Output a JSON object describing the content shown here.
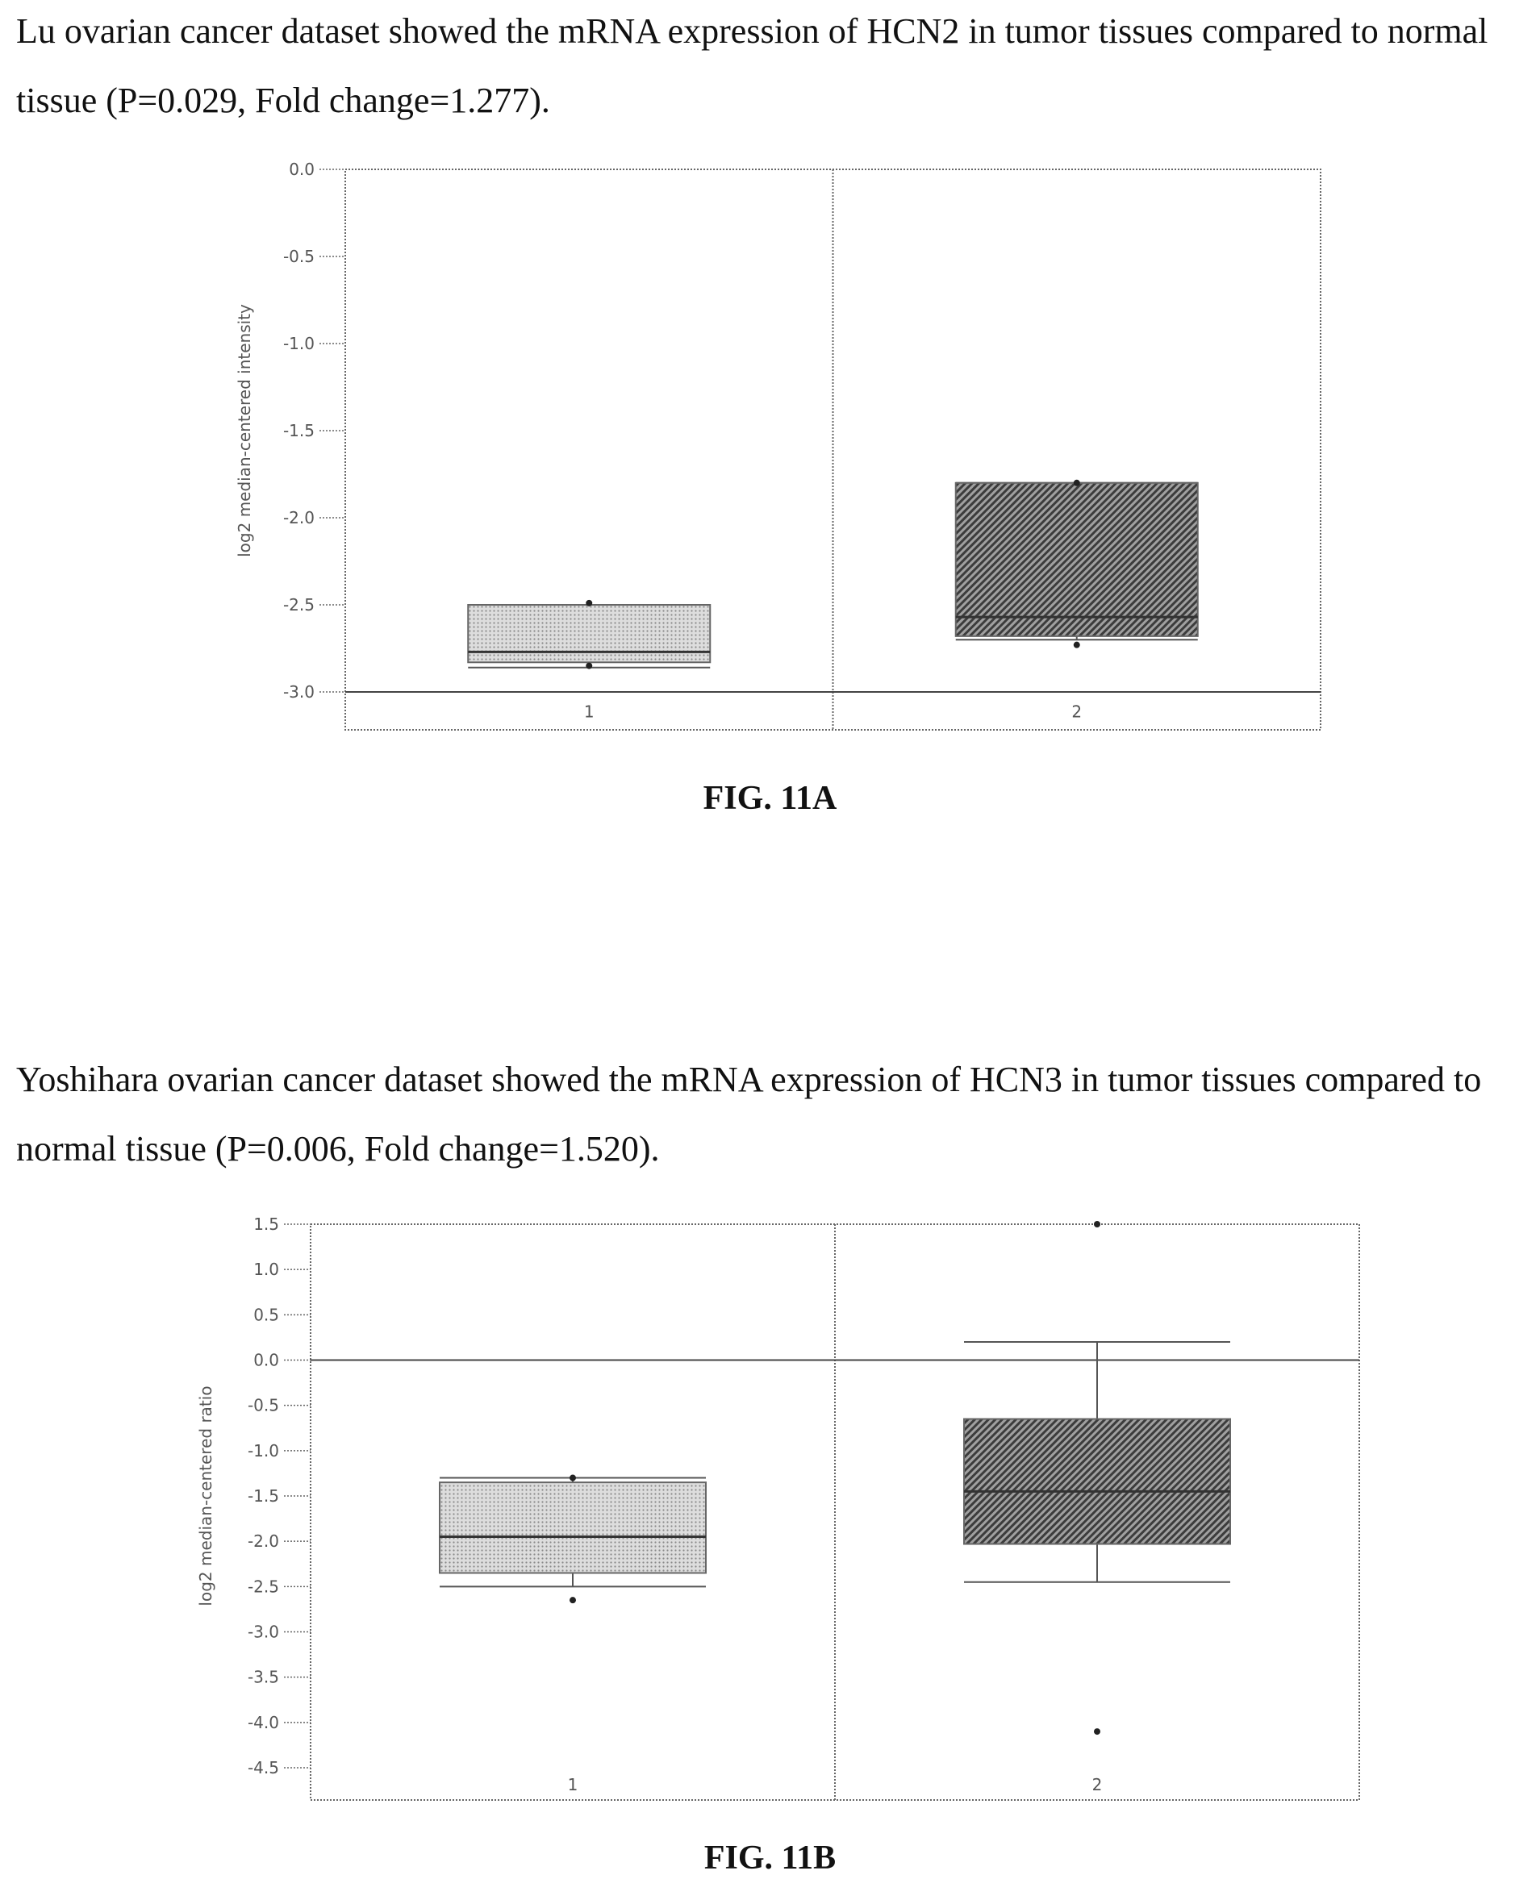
{
  "text": {
    "intro_a": "Lu ovarian cancer dataset showed the mRNA expression of HCN2 in tumor tissues compared to normal tissue (P=0.029, Fold change=1.277).",
    "caption_a": "FIG. 11A",
    "intro_b": "Yoshihara ovarian cancer dataset showed the mRNA expression of HCN3 in tumor tissues compared to normal tissue (P=0.006, Fold change=1.520).",
    "caption_b": "FIG. 11B"
  },
  "chart_data": [
    {
      "type": "box",
      "ylabel": "log2 median-centered intensity",
      "ylim": [
        -3.0,
        0.0
      ],
      "yticks": [
        0.0,
        -0.5,
        -1.0,
        -1.5,
        -2.0,
        -2.5,
        -3.0
      ],
      "ytick_labels": [
        "0.0",
        "-0.5",
        "-1.0",
        "-1.5",
        "-2.0",
        "-2.5",
        "-3.0"
      ],
      "categories": [
        "1",
        "2"
      ],
      "boxes": [
        {
          "q1": -2.83,
          "median": -2.77,
          "q3": -2.5,
          "whisker_low": -2.86,
          "whisker_high": -2.5,
          "outliers": [
            -2.85,
            -2.49
          ],
          "fill": "#cccccc",
          "pattern": "dots"
        },
        {
          "q1": -2.68,
          "median": -2.57,
          "q3": -1.8,
          "whisker_low": -2.7,
          "whisker_high": -1.8,
          "outliers": [
            -2.73,
            -1.8
          ],
          "fill": "#555555",
          "pattern": "diagonal"
        }
      ],
      "reference_lines": [
        -3.0
      ],
      "grid": false,
      "colors": {
        "frame": "#666666",
        "median": "#333333"
      }
    },
    {
      "type": "box",
      "ylabel": "log2 median-centered ratio",
      "ylim": [
        -4.5,
        1.5
      ],
      "yticks": [
        1.5,
        1.0,
        0.5,
        0.0,
        -0.5,
        -1.0,
        -1.5,
        -2.0,
        -2.5,
        -3.0,
        -3.5,
        -4.0,
        -4.5
      ],
      "ytick_labels": [
        "1.5",
        "1.0",
        "0.5",
        "0.0",
        "-0.5",
        "-1.0",
        "-1.5",
        "-2.0",
        "-2.5",
        "-3.0",
        "-3.5",
        "-4.0",
        "-4.5"
      ],
      "categories": [
        "1",
        "2"
      ],
      "boxes": [
        {
          "q1": -2.35,
          "median": -1.95,
          "q3": -1.35,
          "whisker_low": -2.5,
          "whisker_high": -1.3,
          "outliers": [
            -2.65,
            -1.3
          ],
          "fill": "#cccccc",
          "pattern": "dots"
        },
        {
          "q1": -2.03,
          "median": -1.45,
          "q3": -0.65,
          "whisker_low": -2.45,
          "whisker_high": 0.2,
          "outliers": [
            -4.1,
            1.5
          ],
          "fill": "#555555",
          "pattern": "diagonal"
        }
      ],
      "reference_lines": [
        0.0
      ],
      "grid": false,
      "colors": {
        "frame": "#666666",
        "median": "#333333"
      }
    }
  ]
}
